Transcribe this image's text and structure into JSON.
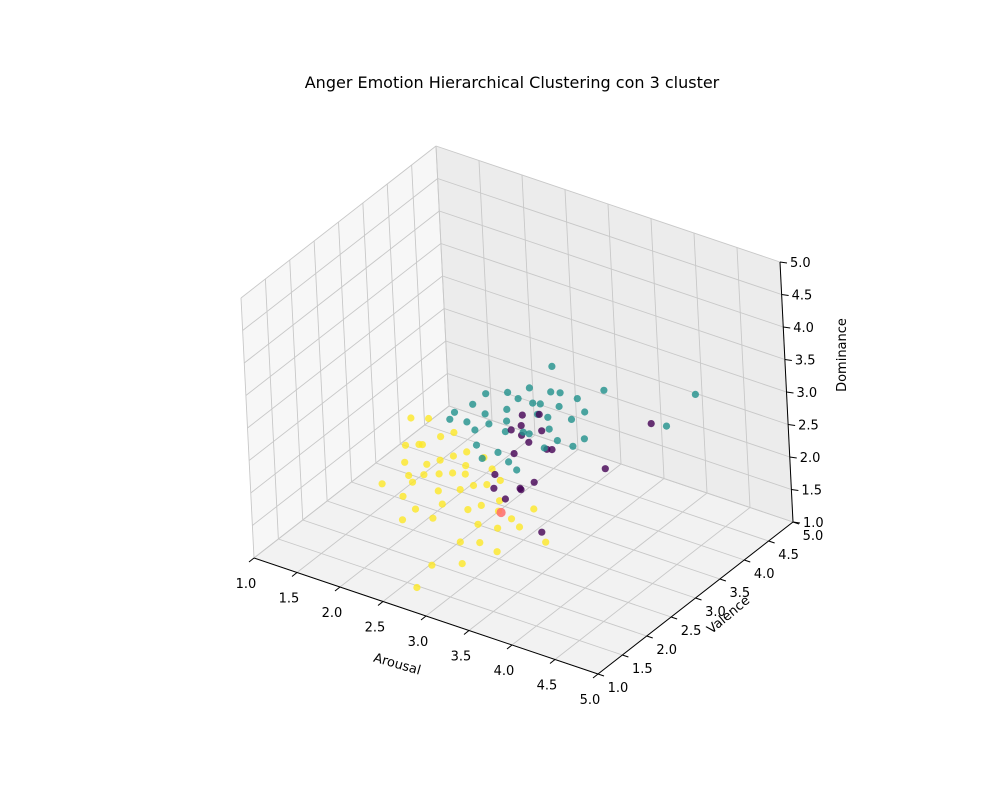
{
  "chart_data": {
    "type": "scatter",
    "projection": "3d",
    "title": "Anger Emotion Hierarchical Clustering con 3 cluster",
    "xlabel": "Arousal",
    "ylabel": "Valence",
    "zlabel": "Dominance",
    "xlim": [
      1.0,
      5.0
    ],
    "ylim": [
      1.0,
      5.0
    ],
    "zlim": [
      1.0,
      5.0
    ],
    "ticks": [
      "1.0",
      "1.5",
      "2.0",
      "2.5",
      "3.0",
      "3.5",
      "4.0",
      "4.5",
      "5.0"
    ],
    "grid": true,
    "colors": {
      "cluster_0": "#440154",
      "cluster_1": "#21918c",
      "cluster_2": "#fde725",
      "centroid": "#ff6b6b",
      "pane_floor": "#f2f2f2",
      "pane_left": "#f7f7f7",
      "pane_back": "#ececec",
      "grid": "#c8c8c8"
    },
    "series": [
      {
        "cluster": 0,
        "color": "#440154",
        "points": [
          [
            2.95,
            3.15,
            2.65
          ],
          [
            3.05,
            3.35,
            2.75
          ],
          [
            3.1,
            3.3,
            2.55
          ],
          [
            2.85,
            3.35,
            2.65
          ],
          [
            2.95,
            2.95,
            2.7
          ],
          [
            3.15,
            2.95,
            2.6
          ],
          [
            3.45,
            2.9,
            2.65
          ],
          [
            3.4,
            2.6,
            2.3
          ],
          [
            3.95,
            4.05,
            2.6
          ],
          [
            3.8,
            3.35,
            2.25
          ],
          [
            3.0,
            2.5,
            2.3
          ],
          [
            3.2,
            2.35,
            2.1
          ],
          [
            3.3,
            2.5,
            2.2
          ],
          [
            3.7,
            2.2,
            1.9
          ],
          [
            3.1,
            2.3,
            2.25
          ],
          [
            2.95,
            3.15,
            2.5
          ],
          [
            3.35,
            2.4,
            2.3
          ],
          [
            3.3,
            3.05,
            2.5
          ],
          [
            3.15,
            2.65,
            2.6
          ]
        ]
      },
      {
        "cluster": 1,
        "color": "#21918c",
        "points": [
          [
            2.6,
            3.5,
            2.8
          ],
          [
            2.8,
            3.6,
            2.9
          ],
          [
            2.95,
            3.4,
            2.85
          ],
          [
            3.05,
            3.6,
            2.95
          ],
          [
            3.1,
            3.7,
            2.9
          ],
          [
            2.7,
            3.3,
            2.7
          ],
          [
            2.5,
            3.2,
            2.6
          ],
          [
            2.4,
            3.0,
            2.55
          ],
          [
            2.2,
            3.0,
            2.5
          ],
          [
            2.3,
            3.3,
            2.6
          ],
          [
            2.6,
            3.1,
            2.55
          ],
          [
            2.75,
            3.2,
            2.6
          ],
          [
            2.85,
            3.0,
            2.6
          ],
          [
            3.0,
            3.4,
            2.7
          ],
          [
            3.2,
            3.5,
            2.85
          ],
          [
            3.3,
            3.7,
            2.9
          ],
          [
            3.4,
            3.4,
            2.8
          ],
          [
            3.5,
            3.5,
            2.9
          ],
          [
            3.25,
            3.2,
            2.7
          ],
          [
            3.1,
            3.05,
            2.65
          ],
          [
            2.9,
            2.75,
            2.45
          ],
          [
            3.05,
            2.7,
            2.4
          ],
          [
            2.8,
            2.6,
            2.4
          ],
          [
            2.65,
            2.75,
            2.45
          ],
          [
            2.55,
            2.9,
            2.55
          ],
          [
            3.4,
            3.1,
            2.65
          ],
          [
            3.55,
            3.15,
            2.6
          ],
          [
            3.5,
            3.9,
            3.0
          ],
          [
            2.9,
            3.9,
            3.1
          ],
          [
            2.4,
            3.4,
            2.75
          ],
          [
            2.2,
            3.1,
            2.55
          ],
          [
            3.3,
            3.0,
            2.55
          ],
          [
            3.2,
            2.6,
            2.4
          ],
          [
            3.0,
            3.1,
            2.6
          ],
          [
            2.95,
            3.55,
            2.75
          ],
          [
            3.6,
            3.3,
            2.65
          ],
          [
            4.25,
            4.45,
            2.95
          ],
          [
            4.1,
            4.1,
            2.6
          ],
          [
            2.75,
            3.45,
            2.8
          ],
          [
            3.15,
            3.35,
            2.75
          ]
        ]
      },
      {
        "cluster": 2,
        "color": "#fde725",
        "points": [
          [
            1.8,
            2.9,
            2.4
          ],
          [
            1.95,
            3.0,
            2.4
          ],
          [
            2.2,
            2.8,
            2.35
          ],
          [
            2.3,
            2.9,
            2.4
          ],
          [
            2.1,
            2.6,
            2.3
          ],
          [
            2.0,
            2.4,
            2.1
          ],
          [
            2.2,
            2.2,
            2.0
          ],
          [
            2.4,
            2.4,
            2.1
          ],
          [
            2.6,
            2.6,
            2.2
          ],
          [
            2.5,
            2.2,
            2.0
          ],
          [
            2.7,
            2.3,
            2.05
          ],
          [
            2.8,
            2.4,
            2.1
          ],
          [
            2.9,
            2.1,
            1.95
          ],
          [
            3.0,
            2.2,
            2.0
          ],
          [
            3.1,
            1.95,
            1.9
          ],
          [
            2.6,
            1.9,
            1.8
          ],
          [
            2.4,
            1.9,
            1.85
          ],
          [
            2.2,
            2.0,
            1.9
          ],
          [
            1.9,
            2.1,
            1.9
          ],
          [
            2.0,
            2.7,
            2.2
          ],
          [
            2.3,
            2.6,
            2.15
          ],
          [
            2.5,
            2.8,
            2.25
          ],
          [
            2.65,
            2.5,
            2.15
          ],
          [
            2.85,
            2.7,
            2.2
          ],
          [
            3.0,
            2.6,
            2.15
          ],
          [
            3.2,
            2.2,
            2.0
          ],
          [
            3.3,
            2.0,
            1.9
          ],
          [
            3.5,
            2.1,
            1.95
          ],
          [
            3.8,
            2.1,
            1.85
          ],
          [
            3.4,
            1.8,
            1.7
          ],
          [
            3.1,
            1.6,
            1.5
          ],
          [
            2.8,
            1.5,
            1.4
          ],
          [
            2.7,
            1.35,
            1.1
          ],
          [
            2.3,
            1.8,
            1.7
          ],
          [
            2.2,
            2.5,
            2.1
          ],
          [
            2.1,
            2.3,
            2.0
          ],
          [
            2.9,
            2.5,
            2.1
          ],
          [
            2.7,
            2.8,
            2.25
          ],
          [
            2.4,
            2.7,
            2.2
          ],
          [
            1.9,
            2.6,
            2.2
          ],
          [
            2.6,
            2.1,
            1.9
          ],
          [
            2.5,
            2.5,
            2.1
          ],
          [
            3.1,
            2.4,
            2.0
          ],
          [
            3.5,
            2.4,
            2.05
          ],
          [
            3.35,
            2.2,
            1.95
          ],
          [
            2.25,
            2.35,
            2.05
          ],
          [
            3.2,
            1.8,
            1.75
          ],
          [
            3.0,
            1.75,
            1.7
          ]
        ]
      }
    ],
    "centroid": [
      3.2,
      2.25,
      1.95
    ]
  }
}
